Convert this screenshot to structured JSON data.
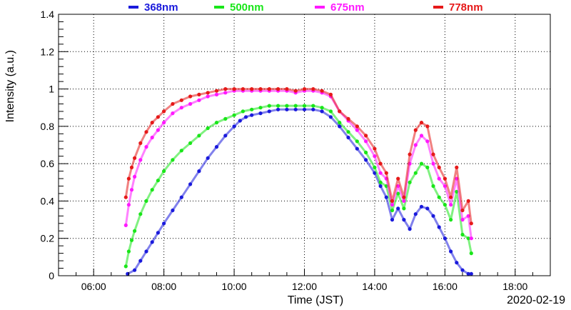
{
  "chart_data": {
    "type": "scatter",
    "title": "",
    "xlabel": "Time (JST)",
    "ylabel": "Intensity (a.u.)",
    "date_label": "2020-02-19",
    "xlim": [
      "05:00",
      "19:00"
    ],
    "ylim": [
      0,
      1.4
    ],
    "x_ticks": [
      "06:00",
      "08:00",
      "10:00",
      "12:00",
      "14:00",
      "16:00",
      "18:00"
    ],
    "y_ticks": [
      "0",
      "0.2",
      "0.4",
      "0.6",
      "0.8",
      "1",
      "1.2",
      "1.4"
    ],
    "grid": true,
    "legend_position": "top",
    "series": [
      {
        "name": "368nm",
        "color": "#1a1adc",
        "x": [
          "06:58",
          "07:10",
          "07:20",
          "07:30",
          "07:40",
          "07:50",
          "08:00",
          "08:15",
          "08:30",
          "08:45",
          "09:00",
          "09:15",
          "09:30",
          "09:45",
          "10:00",
          "10:10",
          "10:20",
          "10:30",
          "10:45",
          "11:00",
          "11:15",
          "11:30",
          "11:45",
          "12:00",
          "12:15",
          "12:30",
          "12:45",
          "13:00",
          "13:15",
          "13:30",
          "13:45",
          "14:00",
          "14:10",
          "14:20",
          "14:30",
          "14:40",
          "14:50",
          "15:00",
          "15:10",
          "15:20",
          "15:30",
          "15:40",
          "15:50",
          "16:00",
          "16:10",
          "16:20",
          "16:30",
          "16:40",
          "16:45"
        ],
        "y": [
          0.01,
          0.03,
          0.08,
          0.13,
          0.18,
          0.23,
          0.28,
          0.35,
          0.42,
          0.49,
          0.56,
          0.63,
          0.69,
          0.75,
          0.8,
          0.83,
          0.85,
          0.86,
          0.87,
          0.88,
          0.89,
          0.89,
          0.89,
          0.89,
          0.89,
          0.88,
          0.85,
          0.8,
          0.74,
          0.68,
          0.62,
          0.55,
          0.48,
          0.42,
          0.3,
          0.36,
          0.3,
          0.25,
          0.33,
          0.37,
          0.36,
          0.32,
          0.26,
          0.2,
          0.13,
          0.07,
          0.03,
          0.01,
          0.01
        ]
      },
      {
        "name": "500nm",
        "color": "#19e619",
        "x": [
          "06:55",
          "07:00",
          "07:05",
          "07:10",
          "07:20",
          "07:30",
          "07:40",
          "07:50",
          "08:00",
          "08:15",
          "08:30",
          "08:45",
          "09:00",
          "09:15",
          "09:30",
          "09:45",
          "10:00",
          "10:15",
          "10:30",
          "10:45",
          "11:00",
          "11:15",
          "11:30",
          "11:45",
          "12:00",
          "12:15",
          "12:30",
          "12:45",
          "13:00",
          "13:15",
          "13:30",
          "13:45",
          "14:00",
          "14:10",
          "14:20",
          "14:30",
          "14:40",
          "14:50",
          "15:00",
          "15:10",
          "15:20",
          "15:30",
          "15:40",
          "15:50",
          "16:00",
          "16:10",
          "16:20",
          "16:30",
          "16:40",
          "16:45"
        ],
        "y": [
          0.05,
          0.13,
          0.19,
          0.24,
          0.33,
          0.4,
          0.46,
          0.51,
          0.56,
          0.62,
          0.67,
          0.71,
          0.75,
          0.79,
          0.82,
          0.84,
          0.86,
          0.88,
          0.89,
          0.9,
          0.91,
          0.91,
          0.91,
          0.91,
          0.91,
          0.91,
          0.9,
          0.88,
          0.82,
          0.77,
          0.72,
          0.66,
          0.58,
          0.5,
          0.48,
          0.35,
          0.44,
          0.36,
          0.5,
          0.55,
          0.6,
          0.58,
          0.48,
          0.42,
          0.38,
          0.3,
          0.45,
          0.22,
          0.2,
          0.12
        ]
      },
      {
        "name": "675nm",
        "color": "#ff19ff",
        "x": [
          "06:55",
          "07:00",
          "07:05",
          "07:10",
          "07:20",
          "07:30",
          "07:40",
          "07:50",
          "08:00",
          "08:15",
          "08:30",
          "08:45",
          "09:00",
          "09:15",
          "09:30",
          "09:45",
          "10:00",
          "10:15",
          "10:30",
          "10:45",
          "11:00",
          "11:15",
          "11:30",
          "11:45",
          "12:00",
          "12:15",
          "12:30",
          "12:45",
          "13:00",
          "13:15",
          "13:30",
          "13:45",
          "14:00",
          "14:10",
          "14:20",
          "14:30",
          "14:40",
          "14:50",
          "15:00",
          "15:10",
          "15:20",
          "15:30",
          "15:40",
          "15:50",
          "16:00",
          "16:10",
          "16:20",
          "16:30",
          "16:40",
          "16:45"
        ],
        "y": [
          0.27,
          0.38,
          0.46,
          0.53,
          0.62,
          0.69,
          0.74,
          0.78,
          0.82,
          0.87,
          0.9,
          0.92,
          0.94,
          0.96,
          0.97,
          0.98,
          0.99,
          0.99,
          0.99,
          0.99,
          0.99,
          0.99,
          0.99,
          0.98,
          0.99,
          0.99,
          0.98,
          0.96,
          0.88,
          0.83,
          0.78,
          0.72,
          0.64,
          0.55,
          0.52,
          0.38,
          0.48,
          0.4,
          0.6,
          0.7,
          0.75,
          0.72,
          0.6,
          0.52,
          0.48,
          0.38,
          0.52,
          0.3,
          0.32,
          0.2
        ]
      },
      {
        "name": "778nm",
        "color": "#e61919",
        "x": [
          "06:55",
          "07:00",
          "07:05",
          "07:10",
          "07:20",
          "07:30",
          "07:40",
          "07:50",
          "08:00",
          "08:15",
          "08:30",
          "08:45",
          "09:00",
          "09:15",
          "09:30",
          "09:45",
          "10:00",
          "10:15",
          "10:30",
          "10:45",
          "11:00",
          "11:15",
          "11:30",
          "11:45",
          "12:00",
          "12:15",
          "12:30",
          "12:45",
          "13:00",
          "13:15",
          "13:30",
          "13:45",
          "14:00",
          "14:10",
          "14:20",
          "14:30",
          "14:40",
          "14:50",
          "15:00",
          "15:10",
          "15:20",
          "15:30",
          "15:40",
          "15:50",
          "16:00",
          "16:10",
          "16:20",
          "16:30",
          "16:40",
          "16:45"
        ],
        "y": [
          0.42,
          0.52,
          0.58,
          0.63,
          0.71,
          0.77,
          0.82,
          0.85,
          0.88,
          0.92,
          0.94,
          0.96,
          0.97,
          0.98,
          0.99,
          1.0,
          1.0,
          1.0,
          1.0,
          1.0,
          1.0,
          1.0,
          1.0,
          0.99,
          1.0,
          1.0,
          0.99,
          0.97,
          0.88,
          0.84,
          0.8,
          0.75,
          0.68,
          0.6,
          0.55,
          0.4,
          0.52,
          0.42,
          0.65,
          0.78,
          0.82,
          0.8,
          0.65,
          0.58,
          0.52,
          0.42,
          0.58,
          0.35,
          0.4,
          0.28
        ]
      }
    ]
  }
}
